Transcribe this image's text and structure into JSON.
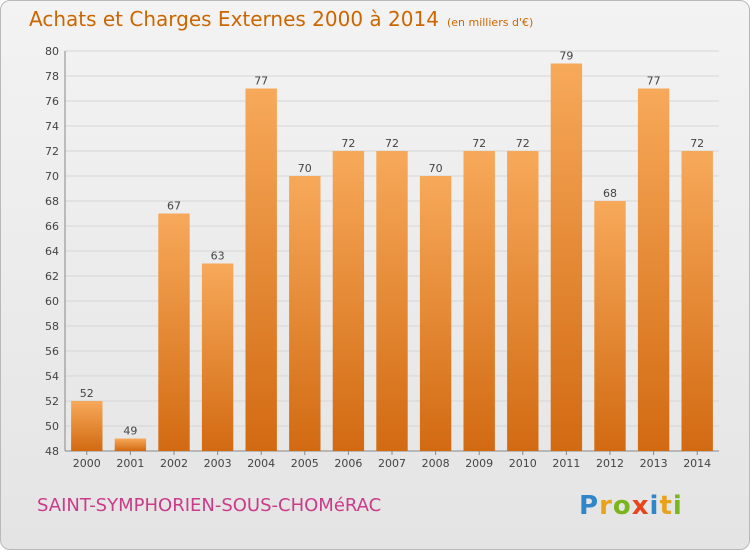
{
  "header": {
    "title": "Achats et Charges Externes 2000 à 2014",
    "unit": "(en milliers d'€)"
  },
  "footer": {
    "commune": "SAINT-SYMPHORIEN-SOUS-CHOMéRAC",
    "brand": "Proxiti",
    "brand_letters": [
      {
        "ch": "P",
        "color": "#2f86c8"
      },
      {
        "ch": "r",
        "color": "#e8a31b"
      },
      {
        "ch": "o",
        "color": "#7ab51d"
      },
      {
        "ch": "x",
        "color": "#e8431b"
      },
      {
        "ch": "i",
        "color": "#2f86c8"
      },
      {
        "ch": "t",
        "color": "#e8a31b"
      },
      {
        "ch": "i",
        "color": "#7ab51d"
      }
    ]
  },
  "colors": {
    "title": "#cc6600",
    "commune": "#cc3a8a",
    "bar_top": "#f7a95a",
    "bar_bottom": "#d26a12",
    "grid": "#d6d6d6"
  },
  "chart_data": {
    "type": "bar",
    "categories": [
      "2000",
      "2001",
      "2002",
      "2003",
      "2004",
      "2005",
      "2006",
      "2007",
      "2008",
      "2009",
      "2010",
      "2011",
      "2012",
      "2013",
      "2014"
    ],
    "values": [
      52,
      49,
      67,
      63,
      77,
      70,
      72,
      72,
      70,
      72,
      72,
      79,
      68,
      77,
      72
    ],
    "title": "Achats et Charges Externes 2000 à 2014",
    "xlabel": "",
    "ylabel": "",
    "ylim": [
      48,
      80
    ],
    "yticks": [
      48,
      50,
      52,
      54,
      56,
      58,
      60,
      62,
      64,
      66,
      68,
      70,
      72,
      74,
      76,
      78,
      80
    ],
    "grid": true,
    "data_labels": true
  }
}
